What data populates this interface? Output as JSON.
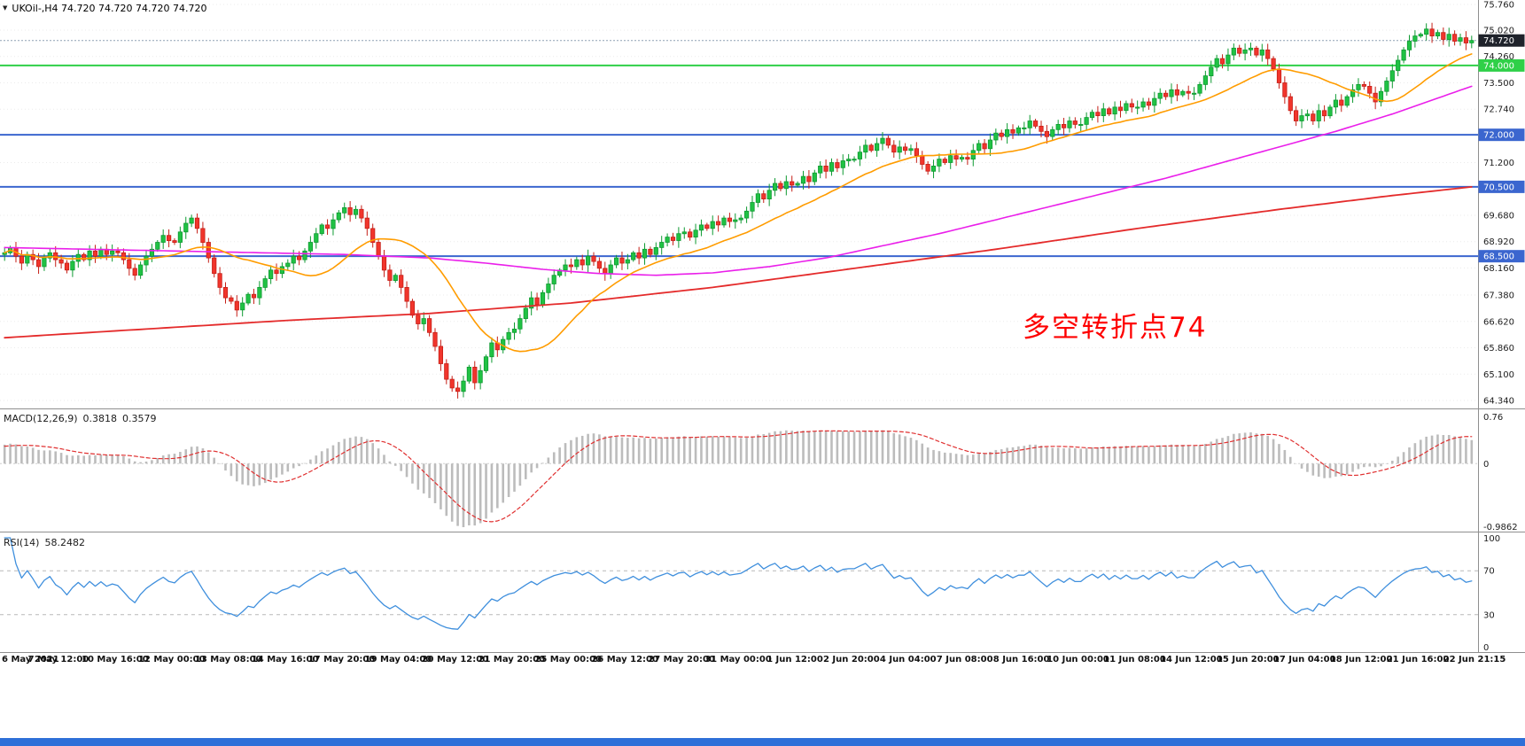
{
  "ui": {
    "symbol_label": "UKOil-,H4 74.720 74.720 74.720 74.720",
    "dropdown_icon": "▼",
    "annotation": "多空转折点74",
    "macd_label": "MACD(12,26,9)",
    "macd_main_value": "0.3818",
    "macd_signal_value": "0.3579",
    "rsi_label": "RSI(14)",
    "rsi_value": "58.2482"
  },
  "layout_colors": {
    "background": "#ffffff",
    "separator": "#8f8f8f",
    "grid": "#ebebeb",
    "axis_text": "#1c1c1c",
    "bottom_bar": "#2e6fd8"
  },
  "chart_data": {
    "type": "candlestick",
    "symbol": "UKOil-",
    "timeframe": "H4",
    "ohlc_display": [
      "74.720",
      "74.720",
      "74.720",
      "74.720"
    ],
    "price_range": [
      64.34,
      75.76
    ],
    "price_ticks": [
      [
        "75.760",
        75.76
      ],
      [
        "75.020",
        75.02
      ],
      [
        "74.260",
        74.26
      ],
      [
        "73.500",
        73.5
      ],
      [
        "72.740",
        72.74
      ],
      [
        "71.200",
        71.2
      ],
      [
        "69.680",
        69.68
      ],
      [
        "68.920",
        68.92
      ],
      [
        "68.160",
        68.16
      ],
      [
        "67.380",
        67.38
      ],
      [
        "66.620",
        66.62
      ],
      [
        "65.860",
        65.86
      ],
      [
        "65.100",
        65.1
      ],
      [
        "64.340",
        64.34
      ]
    ],
    "levels": [
      {
        "label": "74.720",
        "value": 74.72,
        "style": "current"
      },
      {
        "label": "74.000",
        "value": 74.0,
        "style": "green"
      },
      {
        "label": "72.000",
        "value": 72.0,
        "style": "blue"
      },
      {
        "label": "70.500",
        "value": 70.5,
        "style": "blue"
      },
      {
        "label": "68.500",
        "value": 68.5,
        "style": "blue"
      }
    ],
    "level_styles": {
      "current": {
        "line": "#8fa0b3",
        "box": "#1f232b",
        "dash": "2 2",
        "width": 1
      },
      "green": {
        "line": "#2fd048",
        "box": "#2fd048",
        "dash": "",
        "width": 2
      },
      "blue": {
        "line": "#3b66cf",
        "box": "#3b66cf",
        "dash": "",
        "width": 2
      }
    },
    "candle_colors": {
      "up": "#20c244",
      "up_border": "#0e9a31",
      "down": "#f1352c",
      "down_border": "#c51f17"
    },
    "x_labels": [
      "6 May 2021",
      "7 May 12:00",
      "10 May 16:00",
      "12 May 00:00",
      "13 May 08:00",
      "14 May 16:00",
      "17 May 20:00",
      "19 May 04:00",
      "20 May 12:00",
      "21 May 20:00",
      "25 May 00:00",
      "26 May 12:00",
      "27 May 20:00",
      "31 May 00:00",
      "1 Jun 12:00",
      "2 Jun 20:00",
      "4 Jun 04:00",
      "7 Jun 08:00",
      "8 Jun 16:00",
      "10 Jun 00:00",
      "11 Jun 08:00",
      "14 Jun 12:00",
      "15 Jun 20:00",
      "17 Jun 04:00",
      "18 Jun 12:00",
      "21 Jun 16:00",
      "22 Jun 21:15"
    ],
    "candles_per_label": 10,
    "closes": [
      68.6,
      68.75,
      68.5,
      68.3,
      68.55,
      68.4,
      68.2,
      68.45,
      68.6,
      68.4,
      68.3,
      68.1,
      68.35,
      68.55,
      68.4,
      68.65,
      68.5,
      68.7,
      68.55,
      68.65,
      68.6,
      68.4,
      68.15,
      67.95,
      68.25,
      68.5,
      68.7,
      68.9,
      69.1,
      68.95,
      68.9,
      69.2,
      69.45,
      69.6,
      69.3,
      68.9,
      68.45,
      68.0,
      67.6,
      67.3,
      67.2,
      66.95,
      67.15,
      67.4,
      67.3,
      67.6,
      67.85,
      68.1,
      68.0,
      68.2,
      68.3,
      68.5,
      68.4,
      68.65,
      68.9,
      69.15,
      69.4,
      69.3,
      69.55,
      69.75,
      69.9,
      69.7,
      69.85,
      69.6,
      69.3,
      68.9,
      68.5,
      68.1,
      67.8,
      67.95,
      67.6,
      67.2,
      66.8,
      66.55,
      66.7,
      66.3,
      65.9,
      65.4,
      64.95,
      64.7,
      64.6,
      64.9,
      65.3,
      64.85,
      65.2,
      65.6,
      66.0,
      65.8,
      66.1,
      66.3,
      66.4,
      66.7,
      67.0,
      67.3,
      67.1,
      67.45,
      67.7,
      67.95,
      68.1,
      68.25,
      68.2,
      68.4,
      68.25,
      68.5,
      68.35,
      68.15,
      68.0,
      68.25,
      68.45,
      68.3,
      68.4,
      68.6,
      68.45,
      68.7,
      68.55,
      68.75,
      68.9,
      69.05,
      68.95,
      69.15,
      69.2,
      69.05,
      69.25,
      69.4,
      69.3,
      69.5,
      69.4,
      69.6,
      69.5,
      69.55,
      69.6,
      69.8,
      70.05,
      70.3,
      70.15,
      70.4,
      70.6,
      70.45,
      70.65,
      70.55,
      70.6,
      70.8,
      70.65,
      70.9,
      71.1,
      70.95,
      71.2,
      71.05,
      71.25,
      71.3,
      71.3,
      71.5,
      71.7,
      71.55,
      71.75,
      71.9,
      71.7,
      71.5,
      71.65,
      71.55,
      71.6,
      71.4,
      71.15,
      70.95,
      71.1,
      71.3,
      71.2,
      71.4,
      71.3,
      71.35,
      71.3,
      71.55,
      71.75,
      71.6,
      71.85,
      72.05,
      71.95,
      72.15,
      72.05,
      72.2,
      72.2,
      72.4,
      72.25,
      72.1,
      71.95,
      72.15,
      72.3,
      72.2,
      72.4,
      72.3,
      72.3,
      72.5,
      72.65,
      72.55,
      72.75,
      72.6,
      72.8,
      72.7,
      72.9,
      72.8,
      72.8,
      72.95,
      72.85,
      73.05,
      73.2,
      73.1,
      73.3,
      73.15,
      73.25,
      73.2,
      73.2,
      73.45,
      73.7,
      73.95,
      74.2,
      74.05,
      74.3,
      74.5,
      74.35,
      74.45,
      74.5,
      74.3,
      74.45,
      74.2,
      73.9,
      73.5,
      73.1,
      72.7,
      72.4,
      72.55,
      72.6,
      72.4,
      72.7,
      72.55,
      72.8,
      73.0,
      72.85,
      73.1,
      73.3,
      73.45,
      73.4,
      73.2,
      72.95,
      73.25,
      73.55,
      73.85,
      74.15,
      74.45,
      74.7,
      74.85,
      74.9,
      75.05,
      74.85,
      74.95,
      74.75,
      74.9,
      74.7,
      74.8,
      74.65,
      74.72
    ],
    "moving_averages": {
      "fast": {
        "type": "sma",
        "period": 20,
        "color": "#ff9c00",
        "width": 1.6
      },
      "medium": {
        "color": "#ea1fea",
        "width": 1.6,
        "points": [
          [
            0,
            68.75
          ],
          [
            15,
            68.7
          ],
          [
            30,
            68.65
          ],
          [
            45,
            68.6
          ],
          [
            60,
            68.55
          ],
          [
            75,
            68.45
          ],
          [
            85,
            68.3
          ],
          [
            95,
            68.12
          ],
          [
            105,
            68.0
          ],
          [
            115,
            67.95
          ],
          [
            125,
            68.02
          ],
          [
            135,
            68.2
          ],
          [
            145,
            68.45
          ],
          [
            155,
            68.8
          ],
          [
            165,
            69.15
          ],
          [
            175,
            69.55
          ],
          [
            185,
            69.95
          ],
          [
            195,
            70.35
          ],
          [
            205,
            70.75
          ],
          [
            215,
            71.2
          ],
          [
            225,
            71.65
          ],
          [
            235,
            72.1
          ],
          [
            245,
            72.6
          ],
          [
            252,
            73.0
          ],
          [
            259,
            73.4
          ]
        ]
      },
      "slow": {
        "color": "#e42b2b",
        "width": 1.8,
        "points": [
          [
            0,
            66.15
          ],
          [
            25,
            66.4
          ],
          [
            50,
            66.65
          ],
          [
            75,
            66.85
          ],
          [
            100,
            67.15
          ],
          [
            125,
            67.6
          ],
          [
            150,
            68.15
          ],
          [
            175,
            68.7
          ],
          [
            200,
            69.3
          ],
          [
            225,
            69.85
          ],
          [
            245,
            70.25
          ],
          [
            259,
            70.5
          ]
        ]
      }
    },
    "macd": {
      "params": [
        12,
        26,
        9
      ],
      "axis_top": {
        "label": "0.76",
        "value": 0.76
      },
      "axis_zero": {
        "label": "0",
        "value": 0
      },
      "axis_bottom": {
        "label": "-0.9862",
        "value": -0.9862
      },
      "histogram_color": "#bcbcbc",
      "signal_color": "#e03030"
    },
    "rsi": {
      "period": 14,
      "line_color": "#3f8fdd",
      "levels": [
        70,
        30
      ],
      "axis_labels": [
        [
          "100",
          100
        ],
        [
          "70",
          70
        ],
        [
          "30",
          30
        ],
        [
          "0",
          0
        ]
      ]
    }
  }
}
